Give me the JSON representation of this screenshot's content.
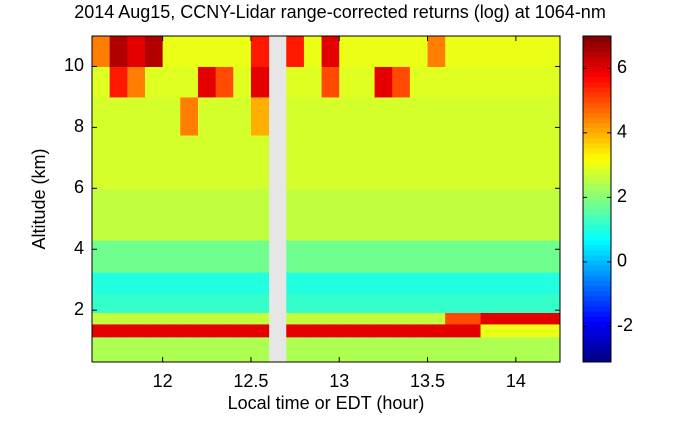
{
  "chart_data": {
    "type": "heatmap",
    "title": "2014 Aug15, CCNY-Lidar range-corrected returns (log) at 1064-nm",
    "x_label": "Local time or EDT (hour)",
    "y_label": "Altitude (km)",
    "xlim": [
      11.6,
      14.25
    ],
    "ylim": [
      0.3,
      11
    ],
    "xticks": [
      12,
      12.5,
      13,
      13.5,
      14
    ],
    "yticks": [
      2,
      4,
      6,
      8,
      10
    ],
    "clim": [
      -3.1,
      7
    ],
    "cticks": [
      -2,
      0,
      2,
      4,
      6
    ],
    "colormap": "jet",
    "x": [
      11.65,
      11.75,
      11.85,
      11.95,
      12.05,
      12.15,
      12.25,
      12.35,
      12.45,
      12.55,
      12.65,
      12.75,
      12.85,
      12.95,
      13.05,
      13.15,
      13.25,
      13.35,
      13.45,
      13.55,
      13.65,
      13.75,
      13.85,
      13.95,
      14.05,
      14.15
    ],
    "y": [
      0.8,
      1.45,
      1.65,
      2.2,
      2.9,
      3.6,
      5,
      7,
      8.5,
      9.5,
      10.5
    ],
    "z": [
      [
        2.4,
        2.4,
        2.4,
        2.4,
        2.4,
        2.4,
        2.4,
        2.4,
        2.4,
        2.4,
        null,
        2.4,
        2.4,
        2.4,
        2.4,
        2.4,
        2.4,
        2.4,
        2.4,
        2.4,
        2.4,
        2.4,
        2.4,
        2.4,
        2.4,
        2.4
      ],
      [
        6,
        6,
        6,
        6,
        6,
        6,
        6,
        6,
        6,
        6,
        null,
        6,
        6,
        6,
        6,
        6,
        6,
        6,
        6,
        6,
        6,
        6,
        3,
        3,
        3,
        3
      ],
      [
        2.6,
        2.6,
        2.6,
        2.6,
        2.6,
        2.6,
        2.6,
        2.6,
        2.6,
        2.6,
        null,
        2.6,
        2.6,
        2.6,
        2.6,
        2.6,
        2.6,
        2.6,
        2.6,
        2.6,
        5,
        5,
        6,
        6,
        6,
        6
      ],
      [
        1.2,
        1.2,
        1.2,
        1.2,
        1.2,
        1.2,
        1.2,
        1.2,
        1.2,
        1.2,
        null,
        1.2,
        1.2,
        1.2,
        1.2,
        1.2,
        1.2,
        1.2,
        1.2,
        1.2,
        1.2,
        1.2,
        1.2,
        1.2,
        1.2,
        1.2
      ],
      [
        1,
        1,
        1,
        1,
        1,
        1,
        1,
        1,
        1,
        1,
        null,
        1,
        1,
        1,
        1,
        1,
        1,
        1,
        1,
        1,
        1,
        1,
        1,
        1,
        1,
        1
      ],
      [
        1.8,
        1.8,
        1.8,
        1.8,
        1.8,
        1.8,
        1.8,
        1.8,
        1.8,
        1.8,
        null,
        1.8,
        1.8,
        1.8,
        1.8,
        1.8,
        1.8,
        1.8,
        1.8,
        1.8,
        1.8,
        1.8,
        1.8,
        1.8,
        1.8,
        1.8
      ],
      [
        2.6,
        2.6,
        2.6,
        2.6,
        2.6,
        2.6,
        2.6,
        2.6,
        2.6,
        2.6,
        null,
        2.6,
        2.6,
        2.6,
        2.6,
        2.6,
        2.6,
        2.6,
        2.6,
        2.6,
        2.6,
        2.6,
        2.6,
        2.6,
        2.6,
        2.6
      ],
      [
        2.8,
        2.8,
        2.8,
        2.8,
        2.8,
        2.8,
        2.8,
        2.8,
        2.8,
        2.8,
        null,
        2.8,
        2.8,
        2.8,
        2.8,
        2.8,
        2.8,
        2.8,
        2.8,
        2.8,
        2.8,
        2.8,
        2.8,
        2.8,
        2.8,
        2.8
      ],
      [
        2.8,
        2.8,
        2.8,
        2.8,
        2.8,
        4.5,
        2.8,
        2.8,
        2.8,
        4,
        null,
        2.8,
        2.8,
        2.8,
        2.8,
        2.8,
        2.8,
        2.8,
        2.8,
        2.8,
        2.8,
        2.8,
        2.8,
        2.8,
        2.8,
        2.8
      ],
      [
        2.9,
        5.5,
        4.5,
        2.9,
        2.9,
        2.9,
        6,
        5,
        2.9,
        6,
        null,
        2.9,
        2.9,
        5,
        2.9,
        2.9,
        6,
        5,
        2.9,
        2.9,
        2.9,
        2.9,
        2.9,
        2.9,
        2.9,
        2.9
      ],
      [
        4.5,
        6.5,
        6,
        6.5,
        3,
        3,
        3,
        3,
        3,
        5.5,
        null,
        5.5,
        3,
        6,
        3,
        3,
        3,
        3,
        3,
        4.5,
        3,
        3,
        3,
        3,
        3,
        3
      ]
    ]
  }
}
